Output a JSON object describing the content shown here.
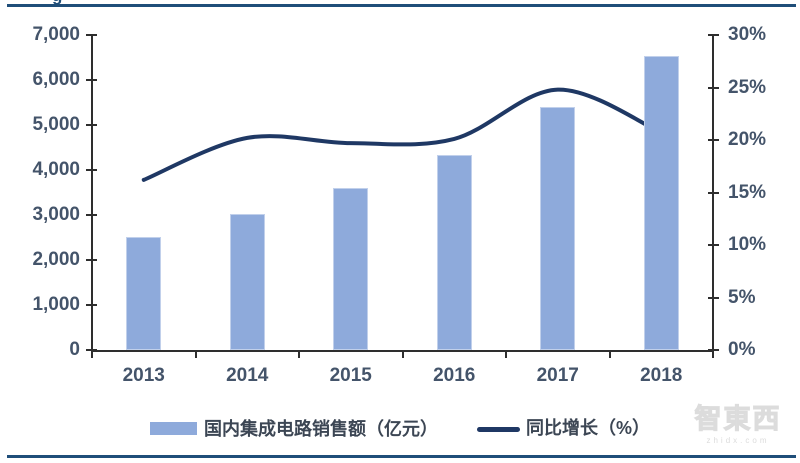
{
  "page": {
    "clipped_title_fragment": "g",
    "watermark": {
      "brand": "智東西",
      "domain": "zhidx.com"
    }
  },
  "colors": {
    "bar_fill": "#8EAADB",
    "line_stroke": "#1F3864",
    "rule": "#1F4E79",
    "axis_line": "#2E2E2E",
    "tick_label": "#44546A",
    "legend_label": "#3C4654",
    "watermark": "#DCDCDC"
  },
  "chart_data": {
    "type": "bar",
    "subtype": "combo: bars (left axis) + smooth line (right axis), dual y-axes",
    "title": "",
    "categories": [
      "2013",
      "2014",
      "2015",
      "2016",
      "2017",
      "2018"
    ],
    "series": [
      {
        "name": "国内集成电路销售额（亿元）",
        "type": "bar",
        "axis": "left",
        "values": [
          2508,
          3015,
          3610,
          4336,
          5411,
          6532
        ]
      },
      {
        "name": "同比增长（%）",
        "type": "line",
        "axis": "right",
        "smooth": true,
        "values": [
          16.2,
          20.2,
          19.7,
          20.1,
          24.8,
          20.7
        ]
      }
    ],
    "left_axis": {
      "min": 0,
      "max": 7000,
      "step": 1000,
      "labels": [
        "0",
        "1,000",
        "2,000",
        "3,000",
        "4,000",
        "5,000",
        "6,000",
        "7,000"
      ]
    },
    "right_axis": {
      "min": 0,
      "max": 30,
      "step": 5,
      "labels": [
        "0%",
        "5%",
        "10%",
        "15%",
        "20%",
        "25%",
        "30%"
      ]
    },
    "grid": false,
    "legend_position": "bottom"
  },
  "legend": {
    "bar_label": "国内集成电路销售额（亿元）",
    "line_label": "同比增长（%）"
  }
}
